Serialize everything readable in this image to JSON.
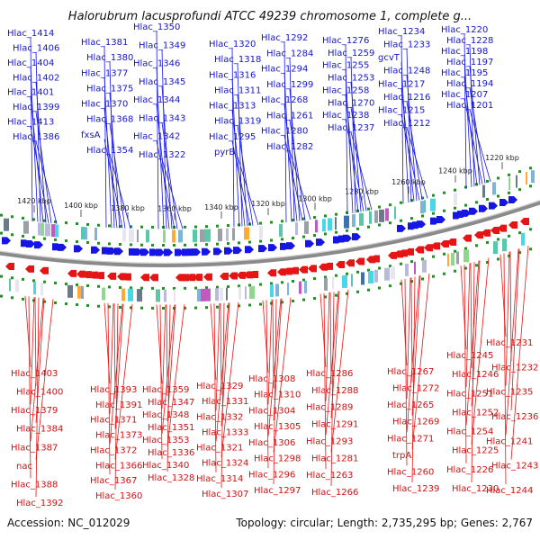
{
  "title": "Halorubrum lacusprofundi ATCC 49239 chromosome 1, complete g...",
  "footer": {
    "accession": "Accession: NC_012029",
    "topology": "Topology: circular; Length: 2,735,295 bp; Genes: 2,767"
  },
  "colors": {
    "forward": "#1515e6",
    "reverse": "#e61515",
    "label_forward": "#1515c8",
    "label_reverse": "#d01010",
    "backbone": "#8a8a8a",
    "dots": "#2a8a2a"
  },
  "scale_ticks": [
    "1420 kbp",
    "1400 kbp",
    "1380 kbp",
    "1360 kbp",
    "1340 kbp",
    "1320 kbp",
    "1300 kbp",
    "1280 kbp",
    "1260 kbp",
    "1240 kbp",
    "1220 kbp"
  ],
  "forward_genes": [
    "Hlac_1414",
    "Hlac_1406",
    "Hlac_1404",
    "Hlac_1402",
    "Hlac_1401",
    "Hlac_1399",
    "Hlac_1413",
    "Hlac_1386",
    "Hlac_1381",
    "Hlac_1380",
    "Hlac_1377",
    "Hlac_1375",
    "Hlac_1370",
    "Hlac_1368",
    "fxsA",
    "Hlac_1354",
    "Hlac_1350",
    "Hlac_1349",
    "Hlac_1346",
    "Hlac_1345",
    "Hlac_1344",
    "Hlac_1343",
    "Hlac_1342",
    "Hlac_1322",
    "Hlac_1320",
    "Hlac_1318",
    "Hlac_1316",
    "Hlac_1311",
    "Hlac_1313",
    "Hlac_1319",
    "Hlac_1295",
    "pyrB",
    "Hlac_1292",
    "Hlac_1284",
    "Hlac_1294",
    "Hlac_1299",
    "Hlac_1268",
    "Hlac_1261",
    "Hlac_1280",
    "Hlac_1282",
    "Hlac_1276",
    "Hlac_1259",
    "Hlac_1255",
    "Hlac_1253",
    "Hlac_1258",
    "Hlac_1270",
    "Hlac_1238",
    "Hlac_1237",
    "Hlac_1234",
    "Hlac_1233",
    "gcvT",
    "Hlac_1248",
    "Hlac_1217",
    "Hlac_1216",
    "Hlac_1215",
    "Hlac_1212",
    "Hlac_1220",
    "Hlac_1228",
    "Hlac_1198",
    "Hlac_1197",
    "Hlac_1195",
    "Hlac_1194",
    "Hlac_1207",
    "Hlac_1201"
  ],
  "reverse_genes": [
    "Hlac_1403",
    "Hlac_1400",
    "Hlac_1379",
    "Hlac_1384",
    "Hlac_1387",
    "nac",
    "Hlac_1388",
    "Hlac_1392",
    "Hlac_1393",
    "Hlac_1391",
    "Hlac_1371",
    "Hlac_1373",
    "Hlac_1372",
    "Hlac_1366",
    "Hlac_1367",
    "Hlac_1360",
    "Hlac_1359",
    "Hlac_1347",
    "Hlac_1348",
    "Hlac_1351",
    "Hlac_1353",
    "Hlac_1336",
    "Hlac_1340",
    "Hlac_1328",
    "Hlac_1329",
    "Hlac_1331",
    "Hlac_1332",
    "Hlac_1333",
    "Hlac_1321",
    "Hlac_1324",
    "Hlac_1314",
    "Hlac_1307",
    "Hlac_1308",
    "Hlac_1310",
    "Hlac_1304",
    "Hlac_1305",
    "Hlac_1306",
    "Hlac_1298",
    "Hlac_1296",
    "Hlac_1297",
    "Hlac_1286",
    "Hlac_1288",
    "Hlac_1289",
    "Hlac_1291",
    "Hlac_1293",
    "Hlac_1281",
    "Hlac_1263",
    "Hlac_1266",
    "Hlac_1267",
    "Hlac_1272",
    "Hlac_1265",
    "Hlac_1269",
    "Hlac_1271",
    "trpA",
    "Hlac_1260",
    "Hlac_1239",
    "Hlac_1245",
    "Hlac_1246",
    "Hlac_1251",
    "Hlac_1252",
    "Hlac_1254",
    "Hlac_1225",
    "Hlac_1226",
    "Hlac_1230",
    "Hlac_1231",
    "Hlac_1232",
    "Hlac_1235",
    "Hlac_1236",
    "Hlac_1241",
    "Hlac_1243",
    "Hlac_1244"
  ]
}
